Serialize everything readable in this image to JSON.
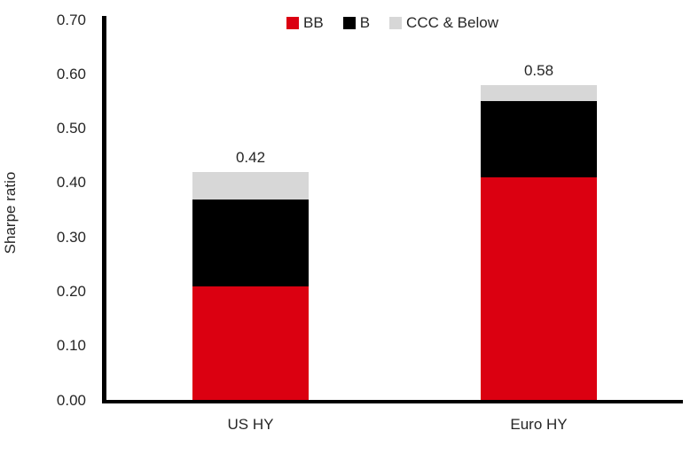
{
  "chart_data": {
    "type": "bar",
    "stacked": true,
    "title": "",
    "ylabel": "Sharpe ratio",
    "xlabel": "",
    "categories": [
      "US HY",
      "Euro HY"
    ],
    "series": [
      {
        "name": "BB",
        "color": "#db0011",
        "values": [
          0.21,
          0.41
        ]
      },
      {
        "name": "B",
        "color": "#000000",
        "values": [
          0.16,
          0.14
        ]
      },
      {
        "name": "CCC & Below",
        "color": "#d7d7d7",
        "values": [
          0.05,
          0.03
        ]
      }
    ],
    "total_labels": [
      "0.42",
      "0.58"
    ],
    "totals": [
      0.42,
      0.58
    ],
    "ylim": [
      0.0,
      0.7
    ],
    "ytick_labels": [
      "0.00",
      "0.10",
      "0.20",
      "0.30",
      "0.40",
      "0.50",
      "0.60",
      "0.70"
    ],
    "yticks": [
      0.0,
      0.1,
      0.2,
      0.3,
      0.4,
      0.5,
      0.6,
      0.7
    ],
    "legend_position": "top-center",
    "grid": false,
    "axis_color": "#000000",
    "text_color": "#262626",
    "background_color": "#ffffff"
  }
}
